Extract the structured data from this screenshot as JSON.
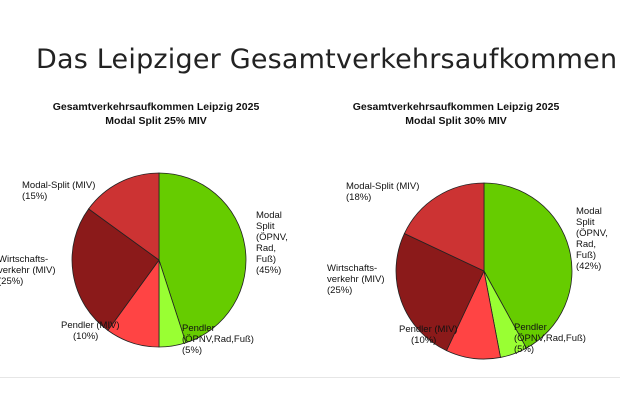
{
  "slide": {
    "title": "Das Leipziger Gesamtverkehrsaufkommen"
  },
  "chart_data": [
    {
      "type": "pie",
      "title": "Gesamtverkehrsaufkommen Leipzig 2025",
      "subtitle": "Modal Split 25% MIV",
      "slices": [
        {
          "label": [
            "Modal",
            "Split",
            "(ÖPNV,",
            "Rad,",
            "Fuß)"
          ],
          "pct": "(45%)",
          "value": 45,
          "color": "#66cc00"
        },
        {
          "label": [
            "Pendler",
            "(ÖPNV,Rad,Fuß)"
          ],
          "pct": "(5%)",
          "value": 5,
          "color": "#99ff33"
        },
        {
          "label": [
            "Pendler (MIV)"
          ],
          "pct": "(10%)",
          "value": 10,
          "color": "#ff4444"
        },
        {
          "label": [
            "Wirtschafts-",
            "verkehr (MIV)"
          ],
          "pct": "(25%)",
          "value": 25,
          "color": "#8b1a1a"
        },
        {
          "label": [
            "Modal-Split (MIV)"
          ],
          "pct": "(15%)",
          "value": 15,
          "color": "#cc3333"
        }
      ]
    },
    {
      "type": "pie",
      "title": "Gesamtverkehrsaufkommen Leipzig 2025",
      "subtitle": "Modal Split 30% MIV",
      "slices": [
        {
          "label": [
            "Modal",
            "Split",
            "(ÖPNV,",
            "Rad,",
            "Fuß)"
          ],
          "pct": "(42%)",
          "value": 42,
          "color": "#66cc00"
        },
        {
          "label": [
            "Pendler",
            "(ÖPNV,Rad,Fuß)"
          ],
          "pct": "(5%)",
          "value": 5,
          "color": "#99ff33"
        },
        {
          "label": [
            "Pendler (MIV)"
          ],
          "pct": "(10%)",
          "value": 10,
          "color": "#ff4444"
        },
        {
          "label": [
            "Wirtschafts-",
            "verkehr (MIV)"
          ],
          "pct": "(25%)",
          "value": 25,
          "color": "#8b1a1a"
        },
        {
          "label": [
            "Modal-Split (MIV)"
          ],
          "pct": "(18%)",
          "value": 18,
          "color": "#cc3333"
        }
      ]
    }
  ]
}
